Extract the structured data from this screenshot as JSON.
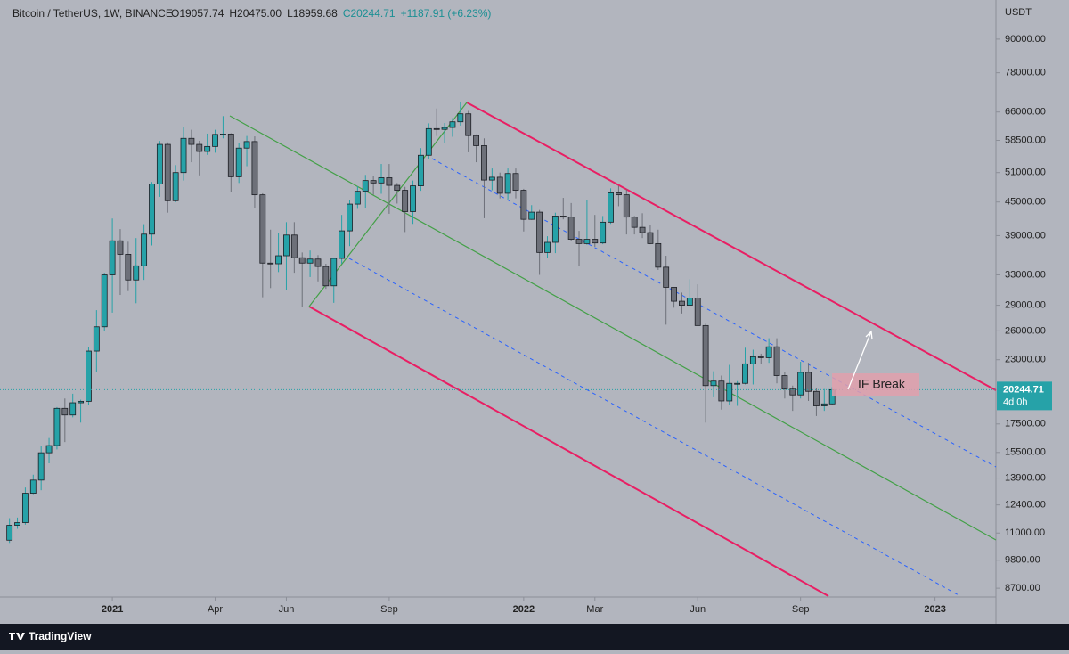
{
  "chart_data": {
    "type": "candlestick",
    "title": "Bitcoin / TetherUS, 1W, BINANCE",
    "ohlc_labels": [
      "O19057.74",
      "H20475.00",
      "L18959.68",
      "C20244.71",
      "+1187.91 (+6.23%)"
    ],
    "axis_unit": "USDT",
    "annotation": "IF Break",
    "last_price": 20244.71,
    "last_price_label": "20244.71",
    "countdown": "4d 0h",
    "log_y": true,
    "up_color": "#26a2a8",
    "down_color": "#6d7079",
    "watermark": "TradingView",
    "open": [
      10670,
      11370,
      11500,
      13030,
      13780,
      15480,
      15960,
      18700,
      18180,
      19150,
      19270,
      23860,
      26460,
      33000,
      38150,
      36020,
      32290,
      34300,
      39250,
      48580,
      57500,
      45240,
      51000,
      59000,
      57500,
      55800,
      57000,
      60000,
      60100,
      50100,
      56600,
      58200,
      46400,
      34700,
      34600,
      35800,
      39100,
      35500,
      34700,
      35300,
      34200,
      31500,
      35400,
      39800,
      44600,
      47100,
      49300,
      48800,
      49900,
      48300,
      47300,
      43200,
      48200,
      54900,
      61500,
      61300,
      61800,
      63300,
      65500,
      59700,
      57200,
      49400,
      50000,
      46700,
      50800,
      47300,
      41800,
      43100,
      36300,
      37900,
      42400,
      42200,
      38400,
      37700,
      38400,
      37800,
      41300,
      46800,
      46400,
      42200,
      40400,
      39500,
      37700,
      34100,
      31300,
      29500,
      29000,
      29900,
      26600,
      20600,
      21000,
      19300,
      20800,
      20800,
      22600,
      23300,
      23200,
      24300,
      21500,
      20300,
      19800,
      21800,
      20100,
      18900,
      19057.74
    ],
    "high": [
      11720,
      11750,
      13350,
      14100,
      15960,
      16480,
      18800,
      19500,
      19900,
      19400,
      24300,
      28400,
      33300,
      41950,
      40100,
      38000,
      38600,
      40950,
      49000,
      58350,
      58000,
      52650,
      61800,
      61200,
      58400,
      60200,
      61200,
      64850,
      60300,
      57900,
      59600,
      59500,
      46700,
      40000,
      39500,
      41300,
      41300,
      36300,
      36600,
      35900,
      34600,
      35400,
      42600,
      45300,
      48100,
      50500,
      50200,
      52900,
      52900,
      48800,
      48000,
      49300,
      56600,
      62900,
      67000,
      63000,
      64300,
      69000,
      66300,
      60000,
      59000,
      51900,
      51000,
      51900,
      51900,
      47600,
      44400,
      43500,
      38900,
      43000,
      45800,
      44800,
      39800,
      45400,
      42600,
      42400,
      47700,
      48200,
      47500,
      42400,
      42900,
      40800,
      40000,
      35800,
      31300,
      30600,
      32400,
      31700,
      26800,
      21900,
      21500,
      22500,
      21000,
      24200,
      24000,
      23600,
      25200,
      25200,
      21800,
      20600,
      22800,
      22700,
      20400,
      20300,
      20475
    ],
    "low": [
      10550,
      11200,
      11400,
      12980,
      13200,
      14800,
      15700,
      16200,
      18000,
      17600,
      19000,
      21800,
      26000,
      28100,
      30300,
      30800,
      29250,
      32300,
      37400,
      46000,
      43000,
      44950,
      49300,
      53300,
      50400,
      55000,
      55500,
      59000,
      47000,
      48800,
      52400,
      43800,
      30000,
      31200,
      33400,
      31000,
      33300,
      28800,
      32700,
      32100,
      31100,
      29300,
      34600,
      37300,
      43700,
      43900,
      46400,
      46600,
      42800,
      44700,
      39600,
      41000,
      47200,
      54100,
      59600,
      57900,
      59400,
      62300,
      55600,
      53300,
      42000,
      47300,
      45700,
      45500,
      45700,
      39700,
      41700,
      33000,
      35400,
      36200,
      41800,
      38100,
      34300,
      37500,
      37200,
      37600,
      41000,
      44200,
      39200,
      39200,
      38600,
      37600,
      33700,
      26700,
      28700,
      28000,
      29000,
      26600,
      17600,
      19600,
      18600,
      19000,
      18900,
      20700,
      20700,
      22600,
      22700,
      20800,
      19500,
      18500,
      19500,
      19300,
      18100,
      18500,
      18959.68
    ],
    "close": [
      11370,
      11500,
      13030,
      13780,
      15480,
      15960,
      18700,
      18180,
      19150,
      19270,
      23860,
      26460,
      33000,
      38150,
      36020,
      32290,
      34300,
      39250,
      48580,
      57500,
      45240,
      51000,
      59000,
      57500,
      55800,
      57000,
      60000,
      60100,
      50100,
      56600,
      58200,
      46400,
      34700,
      34600,
      35800,
      39100,
      35500,
      34700,
      35300,
      34200,
      31500,
      35400,
      39800,
      44600,
      47100,
      49300,
      48800,
      49900,
      48300,
      47300,
      43200,
      48200,
      54900,
      61500,
      61300,
      61800,
      63300,
      65500,
      59700,
      57200,
      49400,
      50000,
      46700,
      50800,
      47300,
      41800,
      43100,
      36300,
      37900,
      42400,
      42200,
      38400,
      37700,
      38400,
      37800,
      41300,
      46800,
      46400,
      42200,
      40400,
      39500,
      37700,
      34100,
      31300,
      29500,
      29000,
      29900,
      26600,
      20600,
      21000,
      19300,
      20800,
      20800,
      22600,
      23300,
      23200,
      24300,
      21500,
      20300,
      19800,
      21800,
      20100,
      18900,
      19060,
      20244.71
    ],
    "xlim": [
      -1.2,
      124.7
    ],
    "xticks": [
      {
        "value": 13,
        "label": "2021"
      },
      {
        "value": 26,
        "label": "Apr"
      },
      {
        "value": 35,
        "label": "Jun"
      },
      {
        "value": 48,
        "label": "Sep"
      },
      {
        "value": 65,
        "label": "2022"
      },
      {
        "value": 74,
        "label": "Mar"
      },
      {
        "value": 87,
        "label": "Jun"
      },
      {
        "value": 100,
        "label": "Sep"
      },
      {
        "value": 117,
        "label": "2023"
      }
    ],
    "ylim": [
      8380,
      106300
    ],
    "yticks": [
      {
        "value": 90000,
        "label": "90000.00"
      },
      {
        "value": 78000,
        "label": "78000.00"
      },
      {
        "value": 66000,
        "label": "66000.00"
      },
      {
        "value": 58500,
        "label": "58500.00"
      },
      {
        "value": 51000,
        "label": "51000.00"
      },
      {
        "value": 45000,
        "label": "45000.00"
      },
      {
        "value": 39000,
        "label": "39000.00"
      },
      {
        "value": 33000,
        "label": "33000.00"
      },
      {
        "value": 29000,
        "label": "29000.00"
      },
      {
        "value": 26000,
        "label": "26000.00"
      },
      {
        "value": 23000,
        "label": "23000.00"
      },
      {
        "value": 17500,
        "label": "17500.00"
      },
      {
        "value": 15500,
        "label": "15500.00"
      },
      {
        "value": 13900,
        "label": "13900.00"
      },
      {
        "value": 12400,
        "label": "12400.00"
      },
      {
        "value": 11000,
        "label": "11000.00"
      },
      {
        "value": 9800,
        "label": "9800.00"
      },
      {
        "value": 8700,
        "label": "8700.00"
      }
    ]
  }
}
